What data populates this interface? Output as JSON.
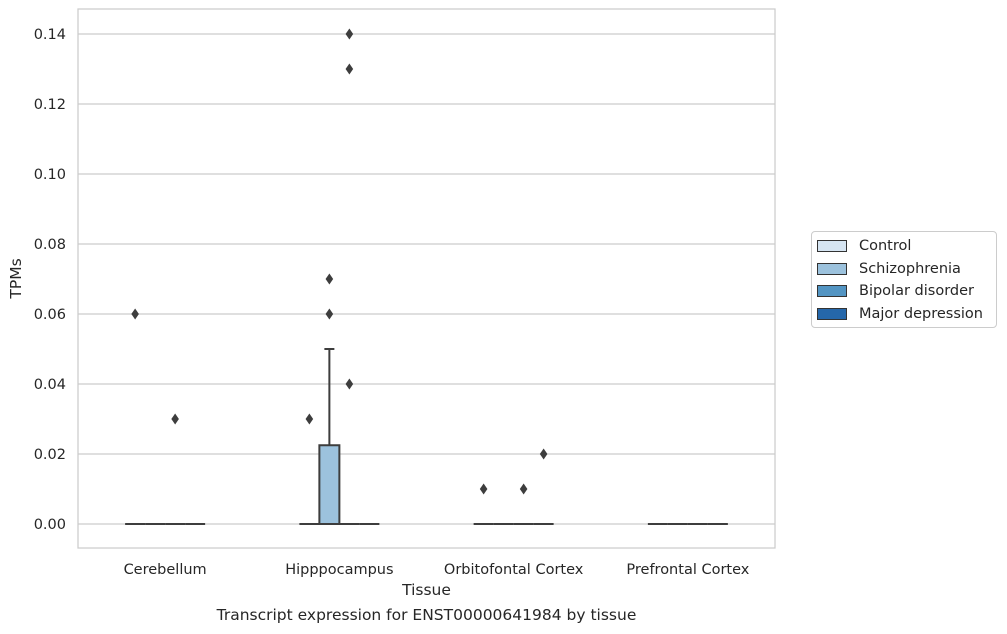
{
  "chart_data": {
    "type": "box",
    "xlabel": "Tissue",
    "ylabel": "TPMs",
    "caption": "Transcript expression for ENST00000641984 by tissue",
    "ylim": [
      -0.007,
      0.147
    ],
    "yticks": [
      0.0,
      0.02,
      0.04,
      0.06,
      0.08,
      0.1,
      0.12,
      0.14
    ],
    "ytick_labels": [
      "0.00",
      "0.02",
      "0.04",
      "0.06",
      "0.08",
      "0.10",
      "0.12",
      "0.14"
    ],
    "grid": "horizontal",
    "legend_position": "right",
    "categories": [
      "Cerebellum",
      "Hipppocampus",
      "Orbitofontal Cortex",
      "Prefrontal Cortex"
    ],
    "series": [
      {
        "name": "Control",
        "color": "#d6e5f2",
        "boxes": [
          {
            "q1": 0,
            "median": 0,
            "q3": 0,
            "whisker_low": 0,
            "whisker_high": 0,
            "outliers": [
              0.06
            ]
          },
          {
            "q1": 0,
            "median": 0,
            "q3": 0,
            "whisker_low": 0,
            "whisker_high": 0,
            "outliers": [
              0.03
            ]
          },
          {
            "q1": 0,
            "median": 0,
            "q3": 0,
            "whisker_low": 0,
            "whisker_high": 0,
            "outliers": [
              0.01
            ]
          },
          {
            "q1": 0,
            "median": 0,
            "q3": 0,
            "whisker_low": 0,
            "whisker_high": 0,
            "outliers": []
          }
        ]
      },
      {
        "name": "Schizophrenia",
        "color": "#9cc2dd",
        "boxes": [
          {
            "q1": 0,
            "median": 0,
            "q3": 0,
            "whisker_low": 0,
            "whisker_high": 0,
            "outliers": []
          },
          {
            "q1": 0,
            "median": 0,
            "q3": 0.0225,
            "whisker_low": 0,
            "whisker_high": 0.05,
            "outliers": [
              0.07,
              0.06
            ]
          },
          {
            "q1": 0,
            "median": 0,
            "q3": 0,
            "whisker_low": 0,
            "whisker_high": 0,
            "outliers": []
          },
          {
            "q1": 0,
            "median": 0,
            "q3": 0,
            "whisker_low": 0,
            "whisker_high": 0,
            "outliers": []
          }
        ]
      },
      {
        "name": "Bipolar disorder",
        "color": "#5395c3",
        "boxes": [
          {
            "q1": 0,
            "median": 0,
            "q3": 0,
            "whisker_low": 0,
            "whisker_high": 0,
            "outliers": [
              0.03
            ]
          },
          {
            "q1": 0,
            "median": 0,
            "q3": 0,
            "whisker_low": 0,
            "whisker_high": 0,
            "outliers": [
              0.14,
              0.13,
              0.04
            ]
          },
          {
            "q1": 0,
            "median": 0,
            "q3": 0,
            "whisker_low": 0,
            "whisker_high": 0,
            "outliers": [
              0.01
            ]
          },
          {
            "q1": 0,
            "median": 0,
            "q3": 0,
            "whisker_low": 0,
            "whisker_high": 0,
            "outliers": []
          }
        ]
      },
      {
        "name": "Major depression",
        "color": "#2567aa",
        "boxes": [
          {
            "q1": 0,
            "median": 0,
            "q3": 0,
            "whisker_low": 0,
            "whisker_high": 0,
            "outliers": []
          },
          {
            "q1": 0,
            "median": 0,
            "q3": 0,
            "whisker_low": 0,
            "whisker_high": 0,
            "outliers": []
          },
          {
            "q1": 0,
            "median": 0,
            "q3": 0,
            "whisker_low": 0,
            "whisker_high": 0,
            "outliers": [
              0.02
            ]
          },
          {
            "q1": 0,
            "median": 0,
            "q3": 0,
            "whisker_low": 0,
            "whisker_high": 0,
            "outliers": []
          }
        ]
      }
    ]
  }
}
